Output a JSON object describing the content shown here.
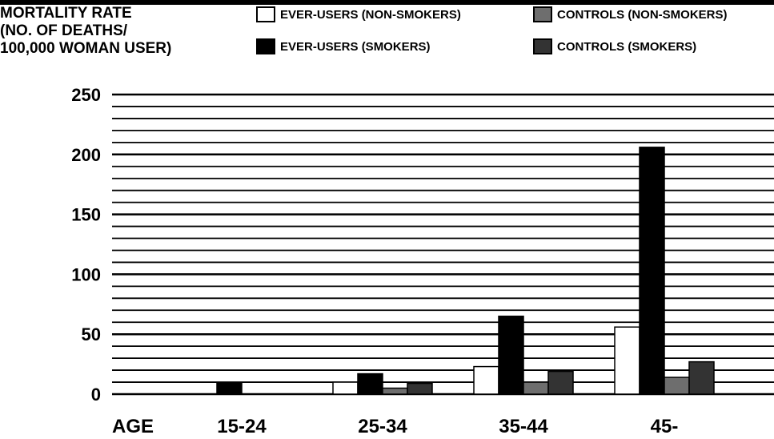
{
  "chart_data": {
    "type": "bar",
    "ylabel_lines": [
      "MORTALITY RATE",
      "(NO. OF DEATHS/",
      "100,000 WOMAN USER)"
    ],
    "xlabel": "AGE",
    "categories": [
      "15-24",
      "25-34",
      "35-44",
      "45-"
    ],
    "series": [
      {
        "name": "EVER-USERS (NON-SMOKERS)",
        "color": "#ffffff",
        "values": [
          0,
          10,
          23,
          56
        ]
      },
      {
        "name": "EVER-USERS (SMOKERS)",
        "color": "#000000",
        "values": [
          9,
          17,
          65,
          206
        ]
      },
      {
        "name": "CONTROLS (NON-SMOKERS)",
        "color": "#6e6e6e",
        "values": [
          0,
          5,
          10,
          14
        ]
      },
      {
        "name": "CONTROLS (SMOKERS)",
        "color": "#333333",
        "values": [
          0,
          9,
          19,
          27
        ]
      }
    ],
    "yticks": [
      0,
      50,
      100,
      150,
      200,
      250
    ],
    "ylim": [
      0,
      250
    ],
    "grid": true,
    "legend_position": "top"
  }
}
